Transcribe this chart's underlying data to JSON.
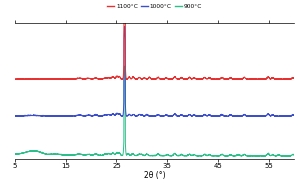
{
  "xlabel": "2θ (°)",
  "xlim": [
    5,
    60
  ],
  "legend_labels": [
    "1100°C",
    "1000°C",
    "900°C"
  ],
  "legend_colors": [
    "#e83030",
    "#3b4fcc",
    "#2bbf8a"
  ],
  "background_color": "#ffffff",
  "xticks": [
    5,
    15,
    25,
    35,
    45,
    55
  ],
  "line_colors": {
    "1100": "#e83030",
    "1000": "#3b4fcc",
    "900": "#2bbf8a"
  },
  "offsets": {
    "1100": 0.52,
    "1000": 0.27,
    "900": 0.0
  }
}
